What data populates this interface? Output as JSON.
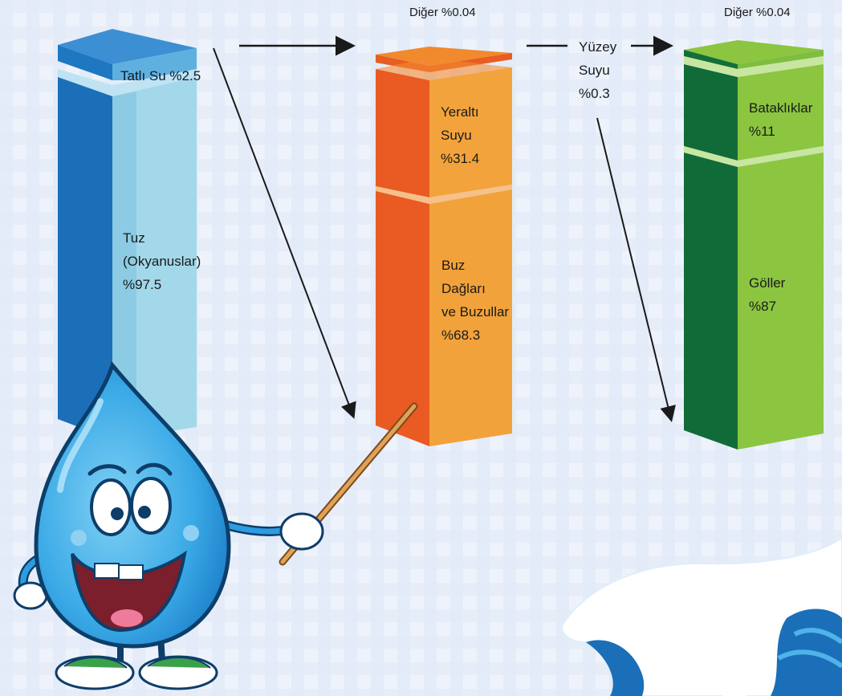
{
  "chart_data": {
    "type": "bar",
    "title": "",
    "columns": [
      {
        "id": "all-water",
        "segments": [
          {
            "label": "Tuz (Okyanuslar) %97.5",
            "value": 97.5,
            "color": "#1a7cc6"
          },
          {
            "label": "Tatlı Su %2.5",
            "value": 2.5,
            "color": "#3e8fd3"
          }
        ]
      },
      {
        "id": "fresh-water",
        "top_note": "Diğer %0.04",
        "segments": [
          {
            "label": "Buz Dağları ve Buzullar %68.3",
            "value": 68.3,
            "color": "#f07a21"
          },
          {
            "label": "Yeraltı Suyu %31.4",
            "value": 31.4,
            "color": "#f07a21"
          },
          {
            "label": "Yüzey Suyu %0.3",
            "value": 0.3,
            "color": "#f07a21"
          }
        ]
      },
      {
        "id": "surface-water",
        "top_note": "Diğer %0.04",
        "segments": [
          {
            "label": "Göller %87",
            "value": 87,
            "color": "#2e9a3b"
          },
          {
            "label": "Bataklıklar %11",
            "value": 11,
            "color": "#2e9a3b"
          },
          {
            "label": "Diğer %0.04",
            "value": 0.04,
            "color": "#2e9a3b"
          }
        ]
      }
    ],
    "flows": [
      {
        "from": "Tatlı Su %2.5",
        "to": "fresh-water"
      },
      {
        "from": "Yüzey Suyu %0.3",
        "to": "surface-water"
      }
    ]
  },
  "labels": {
    "col1_main": [
      "Tuz",
      "(Okyanuslar)",
      "%97.5"
    ],
    "col1_top": "Tatlı Su %2.5",
    "col2_header": "Diğer %0.04",
    "col2_mid": [
      "Yeraltı",
      "Suyu",
      "%31.4"
    ],
    "col2_bottom": [
      "Buz",
      "Dağları",
      "ve Buzullar",
      "%68.3"
    ],
    "col2_surface": [
      "Yüzey",
      "Suyu",
      "%0.3"
    ],
    "col3_header": "Diğer %0.04",
    "col3_mid": [
      "Bataklıklar",
      "%11"
    ],
    "col3_bottom": [
      "Göller",
      "%87"
    ]
  },
  "colors": {
    "background": "#eef3fb",
    "grid": "#d6e4f5",
    "blue_front_dark": "#1a6fb8",
    "blue_front_light": "#a7dcec",
    "orange_front_dark": "#ea5a23",
    "orange_front_light": "#f4a43c",
    "green_front_dark": "#116b39",
    "green_front_light": "#8cc540",
    "arrow": "#1a1a1a"
  },
  "illustrations": [
    "water-drop-mascot",
    "pointer-stick",
    "splash-wave"
  ]
}
